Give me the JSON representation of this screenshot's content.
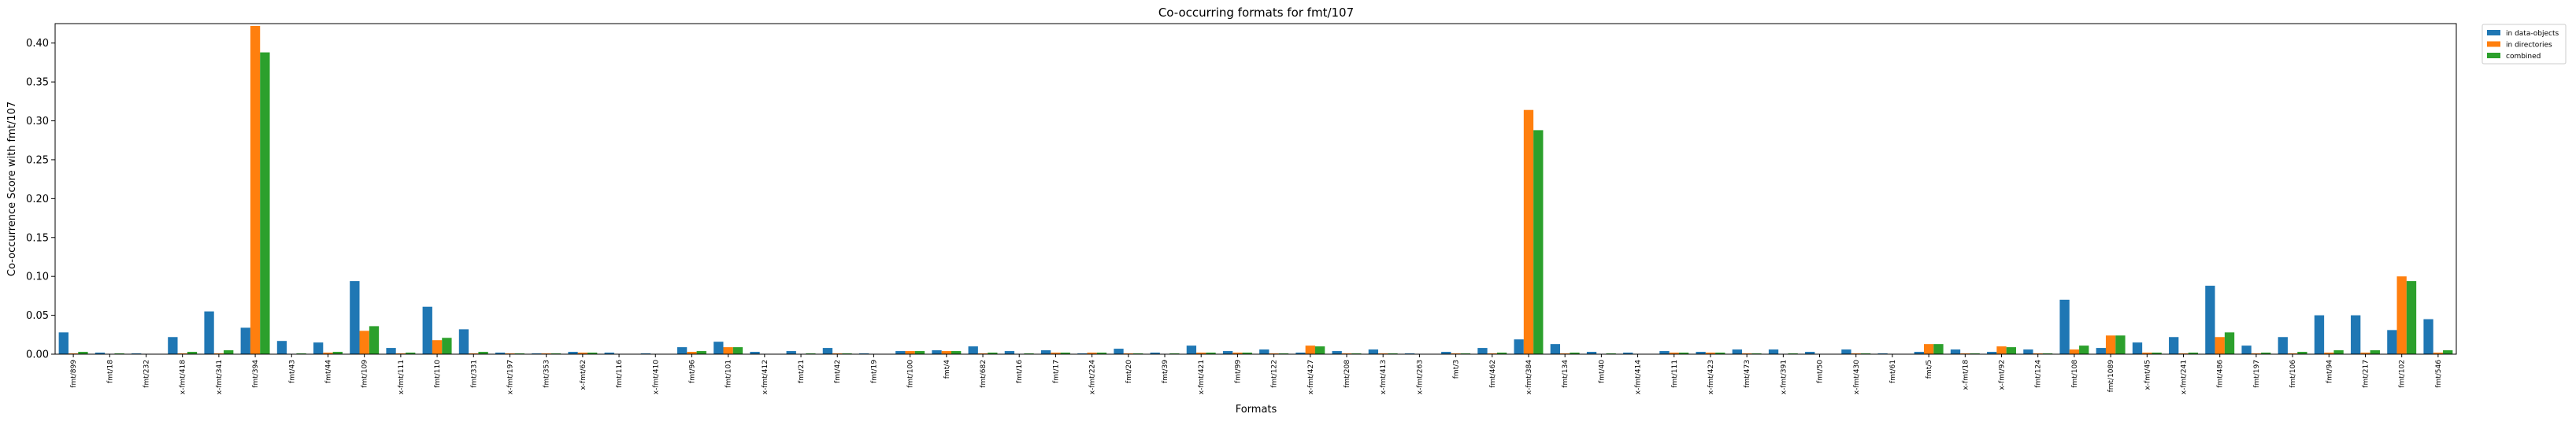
{
  "chart_data": {
    "type": "bar",
    "title": "Co-occurring formats for fmt/107",
    "xlabel": "Formats",
    "ylabel": "Co-occurrence Score with fmt/107",
    "ylim": [
      0,
      0.425
    ],
    "yticks": [
      0.0,
      0.05,
      0.1,
      0.15,
      0.2,
      0.25,
      0.3,
      0.35,
      0.4
    ],
    "ytick_labels": [
      "0.00",
      "0.05",
      "0.10",
      "0.15",
      "0.20",
      "0.25",
      "0.30",
      "0.35",
      "0.40"
    ],
    "grid": false,
    "legend_position": "top-right (outside plot)",
    "categories": [
      "fmt/899",
      "fmt/18",
      "fmt/232",
      "x-fmt/418",
      "x-fmt/341",
      "fmt/394",
      "fmt/43",
      "fmt/44",
      "fmt/109",
      "x-fmt/111",
      "fmt/110",
      "fmt/331",
      "x-fmt/197",
      "fmt/353",
      "x-fmt/62",
      "fmt/116",
      "x-fmt/410",
      "fmt/96",
      "fmt/101",
      "x-fmt/412",
      "fmt/21",
      "fmt/42",
      "fmt/19",
      "fmt/100",
      "fmt/4",
      "fmt/682",
      "fmt/16",
      "fmt/17",
      "x-fmt/224",
      "fmt/20",
      "fmt/39",
      "x-fmt/421",
      "fmt/99",
      "fmt/122",
      "x-fmt/427",
      "fmt/208",
      "x-fmt/413",
      "x-fmt/263",
      "fmt/3",
      "fmt/462",
      "x-fmt/384",
      "fmt/134",
      "fmt/40",
      "x-fmt/414",
      "fmt/111",
      "x-fmt/423",
      "fmt/473",
      "x-fmt/391",
      "fmt/50",
      "x-fmt/430",
      "fmt/61",
      "fmt/5",
      "x-fmt/18",
      "x-fmt/92",
      "fmt/124",
      "fmt/108",
      "fmt/1089",
      "x-fmt/45",
      "x-fmt/241",
      "fmt/486",
      "fmt/197",
      "fmt/106",
      "fmt/94",
      "fmt/217",
      "fmt/102",
      "fmt/546"
    ],
    "series": [
      {
        "name": "in data-objects",
        "color": "#1f77b4",
        "values": [
          0.028,
          0.002,
          0.001,
          0.022,
          0.055,
          0.034,
          0.017,
          0.015,
          0.094,
          0.008,
          0.061,
          0.032,
          0.002,
          0.001,
          0.003,
          0.002,
          0.001,
          0.009,
          0.016,
          0.003,
          0.004,
          0.008,
          0.001,
          0.004,
          0.005,
          0.01,
          0.004,
          0.005,
          0.001,
          0.007,
          0.002,
          0.011,
          0.004,
          0.006,
          0.002,
          0.004,
          0.006,
          0.001,
          0.003,
          0.008,
          0.019,
          0.013,
          0.003,
          0.002,
          0.004,
          0.003,
          0.006,
          0.006,
          0.003,
          0.006,
          0.001,
          0.003,
          0.006,
          0.003,
          0.006,
          0.07,
          0.008,
          0.015,
          0.022,
          0.088,
          0.011,
          0.022,
          0.05,
          0.05,
          0.031,
          0.045
        ]
      },
      {
        "name": "in directories",
        "color": "#ff7f0e",
        "values": [
          0.001,
          0.0,
          0.0,
          0.001,
          0.001,
          0.422,
          0.0,
          0.002,
          0.03,
          0.001,
          0.018,
          0.001,
          0.001,
          0.001,
          0.002,
          0.0,
          0.0,
          0.003,
          0.009,
          0.0,
          0.0,
          0.001,
          0.0,
          0.004,
          0.004,
          0.001,
          0.0,
          0.002,
          0.002,
          0.001,
          0.0,
          0.002,
          0.002,
          0.001,
          0.011,
          0.001,
          0.001,
          0.0,
          0.001,
          0.001,
          0.314,
          0.001,
          0.0,
          0.0,
          0.002,
          0.002,
          0.001,
          0.0,
          0.0,
          0.001,
          0.0,
          0.013,
          0.001,
          0.01,
          0.001,
          0.006,
          0.024,
          0.002,
          0.001,
          0.022,
          0.001,
          0.001,
          0.002,
          0.002,
          0.1,
          0.002
        ]
      },
      {
        "name": "combined",
        "color": "#2ca02c",
        "values": [
          0.003,
          0.001,
          0.0,
          0.003,
          0.005,
          0.388,
          0.001,
          0.003,
          0.036,
          0.002,
          0.021,
          0.003,
          0.001,
          0.001,
          0.002,
          0.0,
          0.0,
          0.004,
          0.009,
          0.0,
          0.001,
          0.001,
          0.0,
          0.004,
          0.004,
          0.002,
          0.001,
          0.002,
          0.002,
          0.001,
          0.001,
          0.002,
          0.002,
          0.001,
          0.01,
          0.001,
          0.001,
          0.0,
          0.001,
          0.002,
          0.288,
          0.002,
          0.001,
          0.0,
          0.002,
          0.002,
          0.001,
          0.001,
          0.0,
          0.001,
          0.0,
          0.013,
          0.001,
          0.009,
          0.001,
          0.011,
          0.024,
          0.002,
          0.002,
          0.028,
          0.002,
          0.003,
          0.005,
          0.005,
          0.094,
          0.005
        ]
      }
    ]
  }
}
